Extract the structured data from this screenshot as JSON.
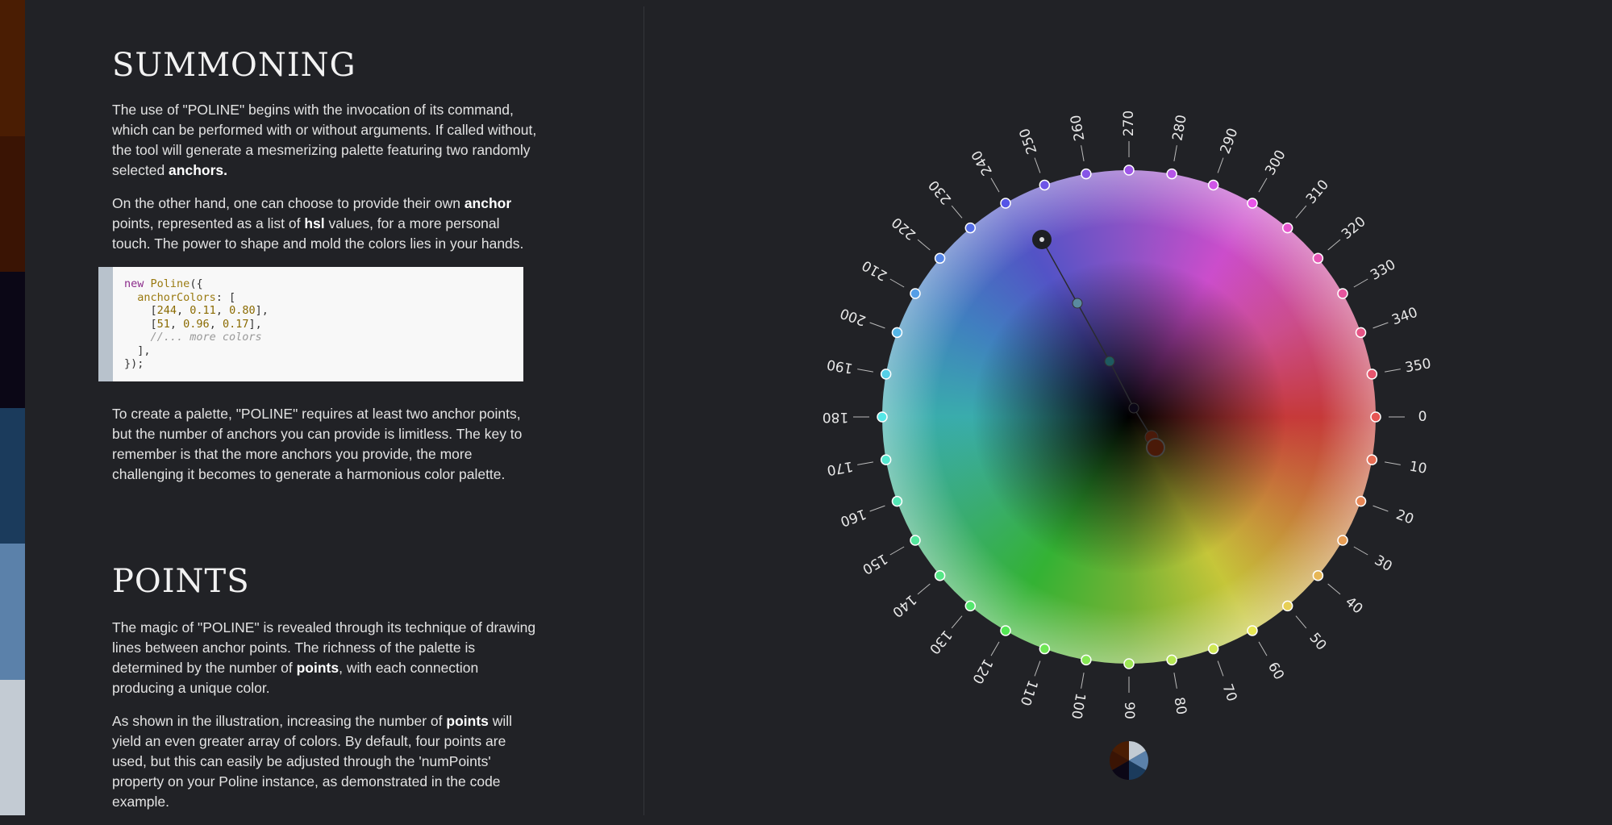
{
  "palette_strip": [
    "#4a1d03",
    "#3a1404",
    "#0b0716",
    "#1b3b5c",
    "#5b81aa",
    "#c3cbd3"
  ],
  "summoning": {
    "title": "SUMMONING",
    "p1": [
      "The use of \"POLINE\" begins with the invocation of its command, which can be performed with or without arguments. If called without, the tool will generate a mesmerizing palette featuring two randomly selected ",
      "anchors."
    ],
    "p2": [
      "On the other hand, one can choose to provide their own ",
      "anchor",
      " points, represented as a list of ",
      "hsl",
      " values, for a more personal touch. The power to shape and mold the colors lies in your hands."
    ],
    "code": {
      "l1a": "new",
      "l1b": "Poline",
      "l1c": "({",
      "l2a": "  anchorColors",
      "l2b": ": [",
      "l3": [
        "    [",
        "244",
        ", ",
        "0.11",
        ", ",
        "0.80",
        "],"
      ],
      "l4": [
        "    [",
        "51",
        ", ",
        "0.96",
        ", ",
        "0.17",
        "],"
      ],
      "l5": "    //... more colors",
      "l6": "  ],",
      "l7": "});"
    },
    "p3": "To create a palette, \"POLINE\" requires at least two anchor points, but the number of anchors you can provide is limitless. The key to remember is that the more anchors you provide, the more challenging it becomes to generate a harmonious color palette."
  },
  "points": {
    "title": "POINTS",
    "p1": [
      "The magic of \"POLINE\" is revealed through its technique of drawing lines between anchor points. The richness of the palette is determined by the number of ",
      "points",
      ", with each connection producing a unique color."
    ],
    "p2": [
      "As shown in the illustration, increasing the number of ",
      "points",
      " will yield an even greater array of colors. By default, four points are used, but this can easily be adjusted through the 'numPoints' property on your Poline instance, as demonstrated in the code example."
    ]
  },
  "wheel": {
    "ticks": [
      "0",
      "10",
      "20",
      "30",
      "40",
      "50",
      "60",
      "70",
      "80",
      "90",
      "100",
      "110",
      "120",
      "130",
      "140",
      "150",
      "160",
      "170",
      "180",
      "190",
      "200",
      "210",
      "220",
      "230",
      "240",
      "250",
      "260",
      "270",
      "280",
      "290",
      "300",
      "310",
      "320",
      "330",
      "340",
      "350"
    ],
    "anchor_colors": [
      "#1e1f23",
      "#3a1404"
    ],
    "point_colors": [
      "#5a8aa0",
      "#1e5a60",
      "#0b0716",
      "#4a1a0a"
    ]
  }
}
